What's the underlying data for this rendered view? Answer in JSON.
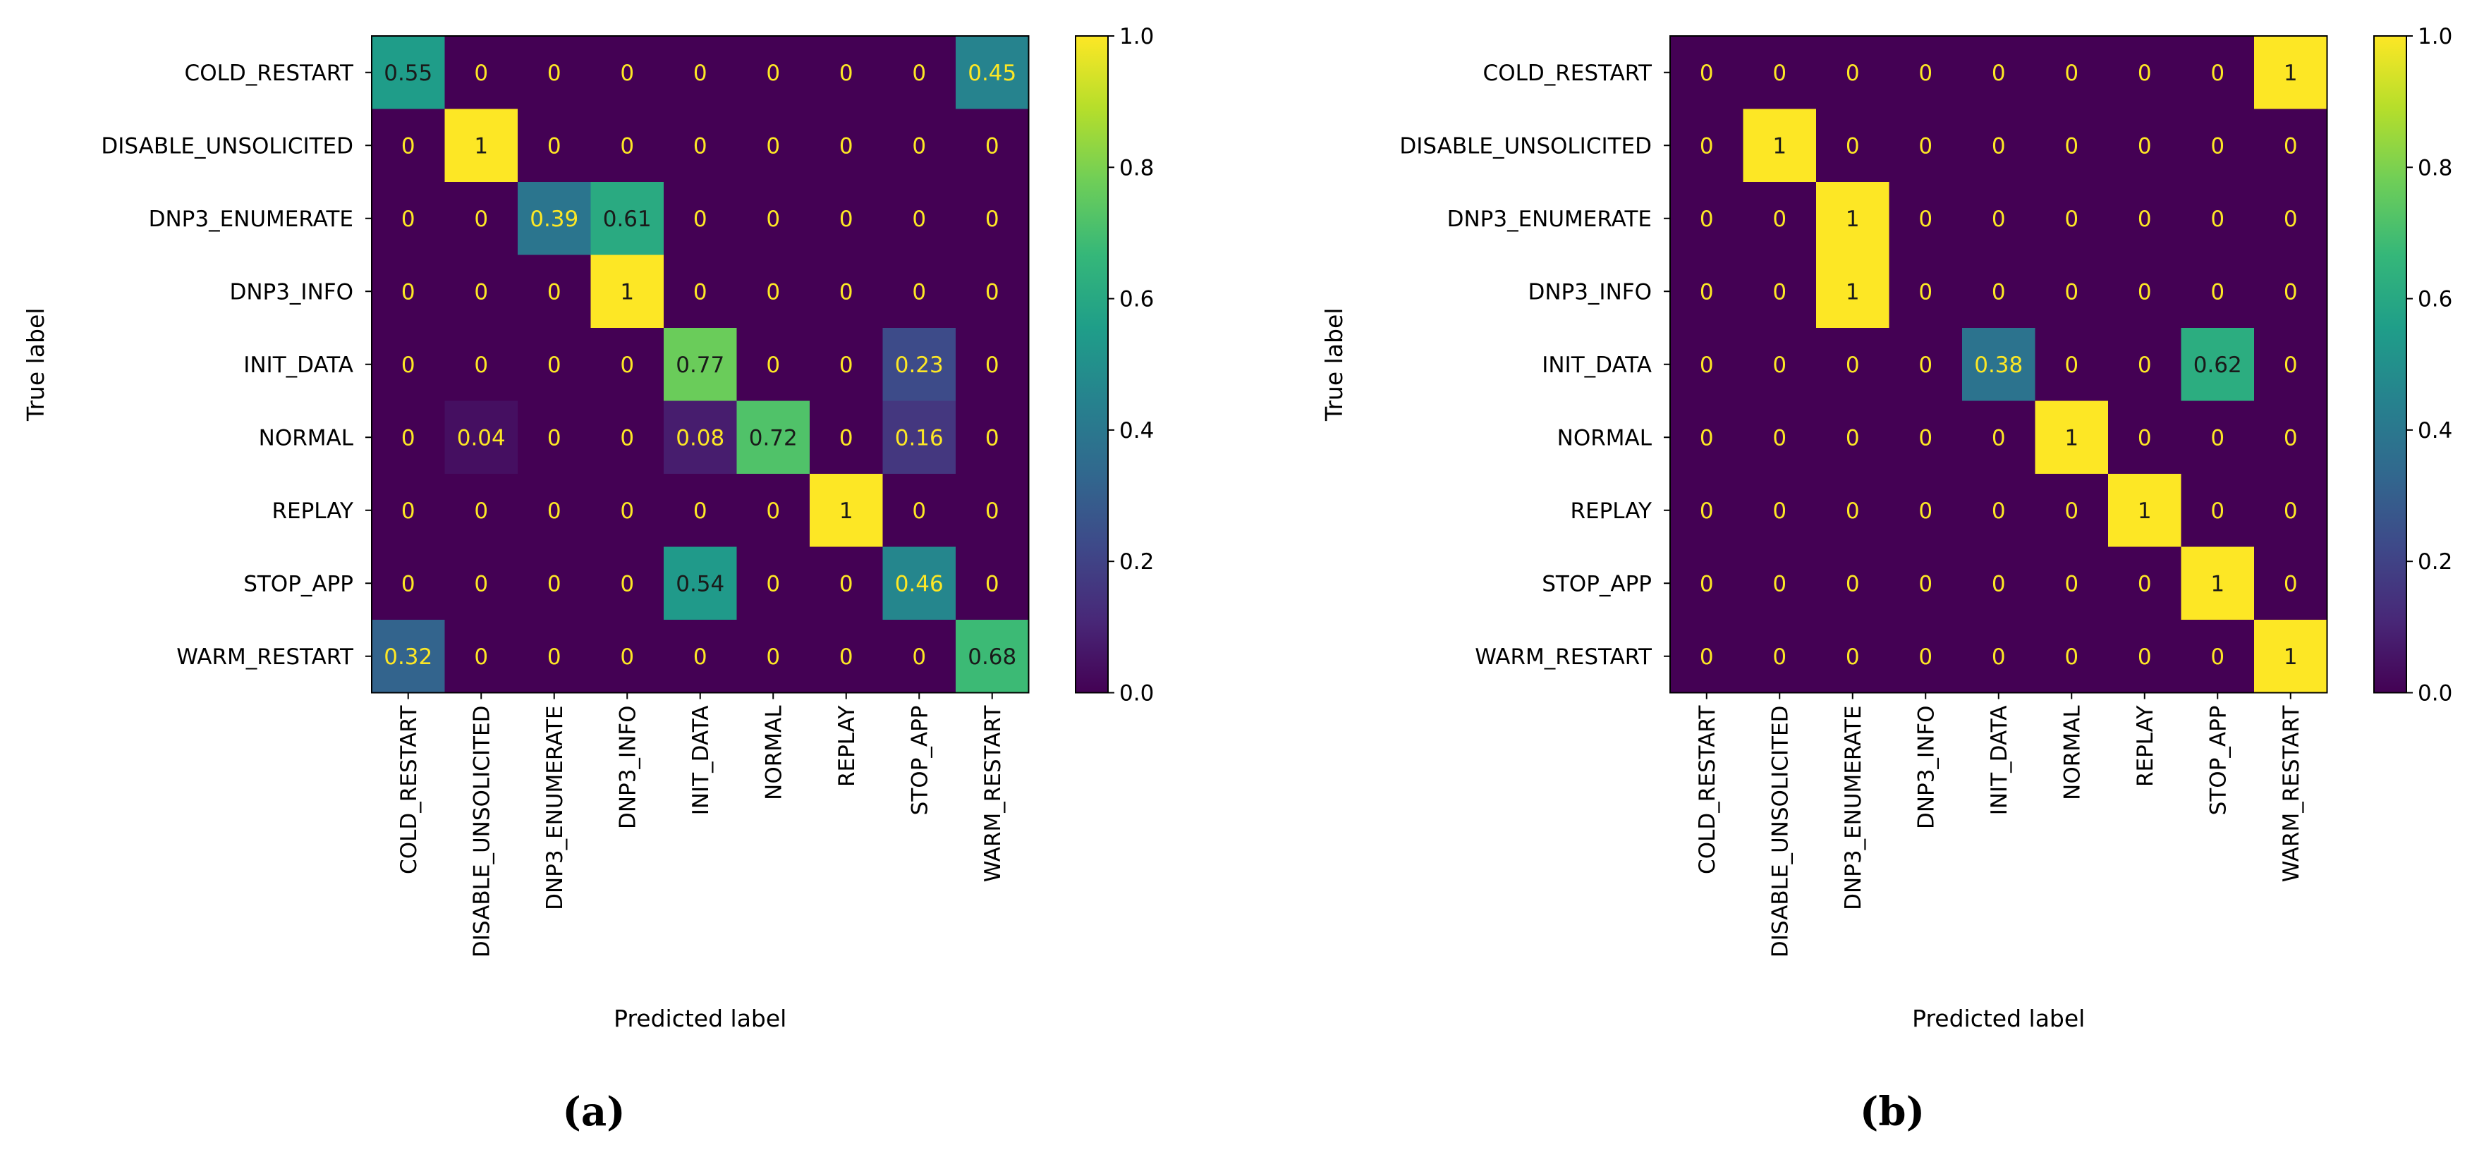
{
  "colormap": {
    "name": "viridis",
    "stops": [
      "#440154",
      "#482878",
      "#3e4989",
      "#31688e",
      "#26828e",
      "#1f9e89",
      "#35b779",
      "#6ece58",
      "#b5de2b",
      "#fde725"
    ],
    "text_on_dark": "#fde725",
    "text_on_light": "#1a1a1a"
  },
  "chart_data": [
    {
      "type": "heatmap",
      "panel_label": "(a)",
      "xlabel": "Predicted label",
      "ylabel": "True label",
      "labels": [
        "COLD_RESTART",
        "DISABLE_UNSOLICITED",
        "DNP3_ENUMERATE",
        "DNP3_INFO",
        "INIT_DATA",
        "NORMAL",
        "REPLAY",
        "STOP_APP",
        "WARM_RESTART"
      ],
      "values": [
        [
          0.55,
          0,
          0,
          0,
          0,
          0,
          0,
          0,
          0.45
        ],
        [
          0,
          1,
          0,
          0,
          0,
          0,
          0,
          0,
          0
        ],
        [
          0,
          0,
          0.39,
          0.61,
          0,
          0,
          0,
          0,
          0
        ],
        [
          0,
          0,
          0,
          1,
          0,
          0,
          0,
          0,
          0
        ],
        [
          0,
          0,
          0,
          0,
          0.77,
          0,
          0,
          0.23,
          0
        ],
        [
          0,
          0.04,
          0,
          0,
          0.08,
          0.72,
          0,
          0.16,
          0
        ],
        [
          0,
          0,
          0,
          0,
          0,
          0,
          1,
          0,
          0
        ],
        [
          0,
          0,
          0,
          0,
          0.54,
          0,
          0,
          0.46,
          0
        ],
        [
          0.32,
          0,
          0,
          0,
          0,
          0,
          0,
          0,
          0.68
        ]
      ],
      "colorbar": {
        "range": [
          0,
          1
        ],
        "ticks": [
          "0.0",
          "0.2",
          "0.4",
          "0.6",
          "0.8",
          "1.0"
        ]
      }
    },
    {
      "type": "heatmap",
      "panel_label": "(b)",
      "xlabel": "Predicted label",
      "ylabel": "True label",
      "labels": [
        "COLD_RESTART",
        "DISABLE_UNSOLICITED",
        "DNP3_ENUMERATE",
        "DNP3_INFO",
        "INIT_DATA",
        "NORMAL",
        "REPLAY",
        "STOP_APP",
        "WARM_RESTART"
      ],
      "values": [
        [
          0,
          0,
          0,
          0,
          0,
          0,
          0,
          0,
          1
        ],
        [
          0,
          1,
          0,
          0,
          0,
          0,
          0,
          0,
          0
        ],
        [
          0,
          0,
          1,
          0,
          0,
          0,
          0,
          0,
          0
        ],
        [
          0,
          0,
          1,
          0,
          0,
          0,
          0,
          0,
          0
        ],
        [
          0,
          0,
          0,
          0,
          0.38,
          0,
          0,
          0.62,
          0
        ],
        [
          0,
          0,
          0,
          0,
          0,
          1,
          0,
          0,
          0
        ],
        [
          0,
          0,
          0,
          0,
          0,
          0,
          1,
          0,
          0
        ],
        [
          0,
          0,
          0,
          0,
          0,
          0,
          0,
          1,
          0
        ],
        [
          0,
          0,
          0,
          0,
          0,
          0,
          0,
          0,
          1
        ]
      ],
      "colorbar": {
        "range": [
          0,
          1
        ],
        "ticks": [
          "0.0",
          "0.2",
          "0.4",
          "0.6",
          "0.8",
          "1.0"
        ]
      }
    }
  ]
}
